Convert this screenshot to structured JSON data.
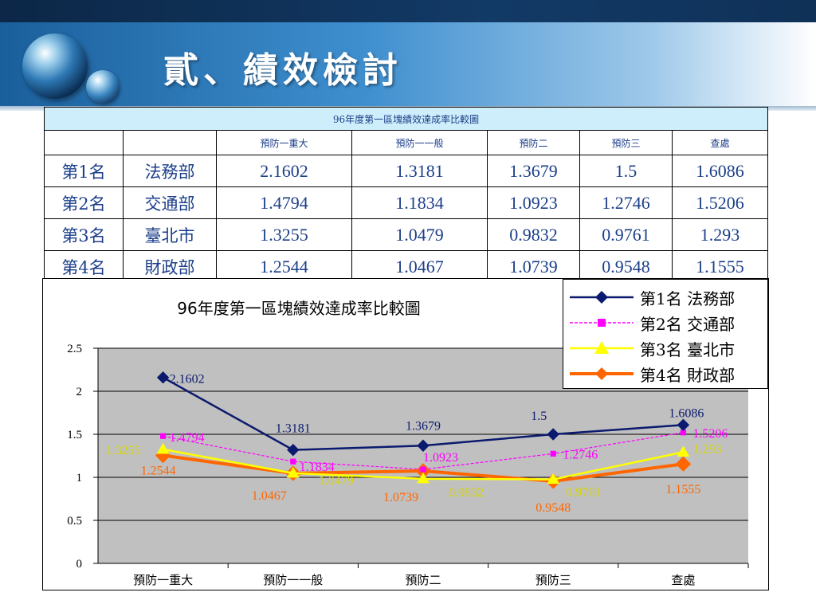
{
  "header": {
    "title": "貳、績效檢討"
  },
  "table": {
    "caption": "96年度第一區塊績效達成率比較圖",
    "columns": [
      "",
      "",
      "預防一重大",
      "預防一一般",
      "預防二",
      "預防三",
      "查處"
    ],
    "rows": [
      {
        "rank": "第1名",
        "dept": "法務部",
        "values": [
          "2.1602",
          "1.3181",
          "1.3679",
          "1.5",
          "1.6086"
        ]
      },
      {
        "rank": "第2名",
        "dept": "交通部",
        "values": [
          "1.4794",
          "1.1834",
          "1.0923",
          "1.2746",
          "1.5206"
        ]
      },
      {
        "rank": "第3名",
        "dept": "臺北市",
        "values": [
          "1.3255",
          "1.0479",
          "0.9832",
          "0.9761",
          "1.293"
        ]
      },
      {
        "rank": "第4名",
        "dept": "財政部",
        "values": [
          "1.2544",
          "1.0467",
          "1.0739",
          "0.9548",
          "1.1555"
        ]
      }
    ]
  },
  "chart_data": {
    "type": "line",
    "title": "96年度第一區塊績效達成率比較圖",
    "categories": [
      "預防一重大",
      "預防一一般",
      "預防二",
      "預防三",
      "查處"
    ],
    "ylim": [
      0,
      2.5
    ],
    "yticks": [
      "0",
      "0.5",
      "1",
      "1.5",
      "2",
      "2.5"
    ],
    "grid": true,
    "legend_position": "top-right",
    "series": [
      {
        "name": "第1名 法務部",
        "color": "#0b1a6e",
        "marker": "diamond",
        "values": [
          2.1602,
          1.3181,
          1.3679,
          1.5,
          1.6086
        ],
        "labels": [
          "2.1602",
          "1.3181",
          "1.3679",
          "1.5",
          "1.6086"
        ]
      },
      {
        "name": "第2名 交通部",
        "color": "#ff00ff",
        "marker": "square",
        "values": [
          1.4794,
          1.1834,
          1.0923,
          1.2746,
          1.5206
        ],
        "labels": [
          "1.4794",
          "1.1834",
          "1.0923",
          "1.2746",
          "1.5206"
        ]
      },
      {
        "name": "第3名 臺北市",
        "color": "#ffff00",
        "marker": "triangle",
        "values": [
          1.3255,
          1.0479,
          0.9832,
          0.9761,
          1.293
        ],
        "labels": [
          "1.3255",
          "1.0479",
          "0.9832",
          "0.9761",
          "1.293"
        ]
      },
      {
        "name": "第4名 財政部",
        "color": "#ff6600",
        "marker": "diamond",
        "values": [
          1.2544,
          1.0467,
          1.0739,
          0.9548,
          1.1555
        ],
        "labels": [
          "1.2544",
          "1.0467",
          "1.0739",
          "0.9548",
          "1.1555"
        ]
      }
    ]
  }
}
